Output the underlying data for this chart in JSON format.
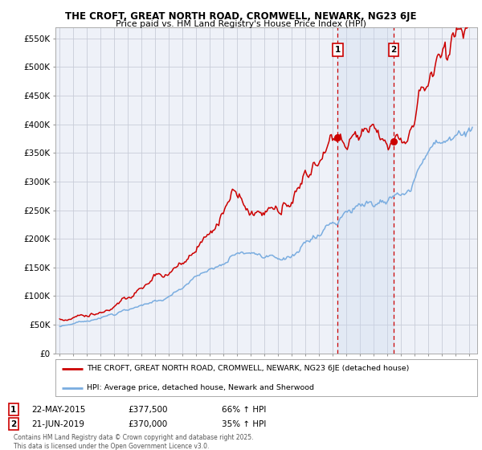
{
  "title1": "THE CROFT, GREAT NORTH ROAD, CROMWELL, NEWARK, NG23 6JE",
  "title2": "Price paid vs. HM Land Registry's House Price Index (HPI)",
  "ylabel_ticks": [
    "£0",
    "£50K",
    "£100K",
    "£150K",
    "£200K",
    "£250K",
    "£300K",
    "£350K",
    "£400K",
    "£450K",
    "£500K",
    "£550K"
  ],
  "ytick_vals": [
    0,
    50000,
    100000,
    150000,
    200000,
    250000,
    300000,
    350000,
    400000,
    450000,
    500000,
    550000
  ],
  "ylim": [
    0,
    570000
  ],
  "sale1_date": "22-MAY-2015",
  "sale1_price": 377500,
  "sale1_label": "66% ↑ HPI",
  "sale1_x": 2015.38,
  "sale2_date": "21-JUN-2019",
  "sale2_price": 370000,
  "sale2_label": "35% ↑ HPI",
  "sale2_x": 2019.47,
  "legend_line1": "THE CROFT, GREAT NORTH ROAD, CROMWELL, NEWARK, NG23 6JE (detached house)",
  "legend_line2": "HPI: Average price, detached house, Newark and Sherwood",
  "footer": "Contains HM Land Registry data © Crown copyright and database right 2025.\nThis data is licensed under the Open Government Licence v3.0.",
  "line1_color": "#cc0000",
  "line2_color": "#7aade0",
  "plot_bg": "#eef1f8",
  "grid_color": "#c8ccd8",
  "vline_color": "#cc0000",
  "shade_color": "#c8d8ee",
  "marker_color": "#cc0000",
  "box_color": "#cc0000",
  "xstart": 1995,
  "xend": 2025
}
